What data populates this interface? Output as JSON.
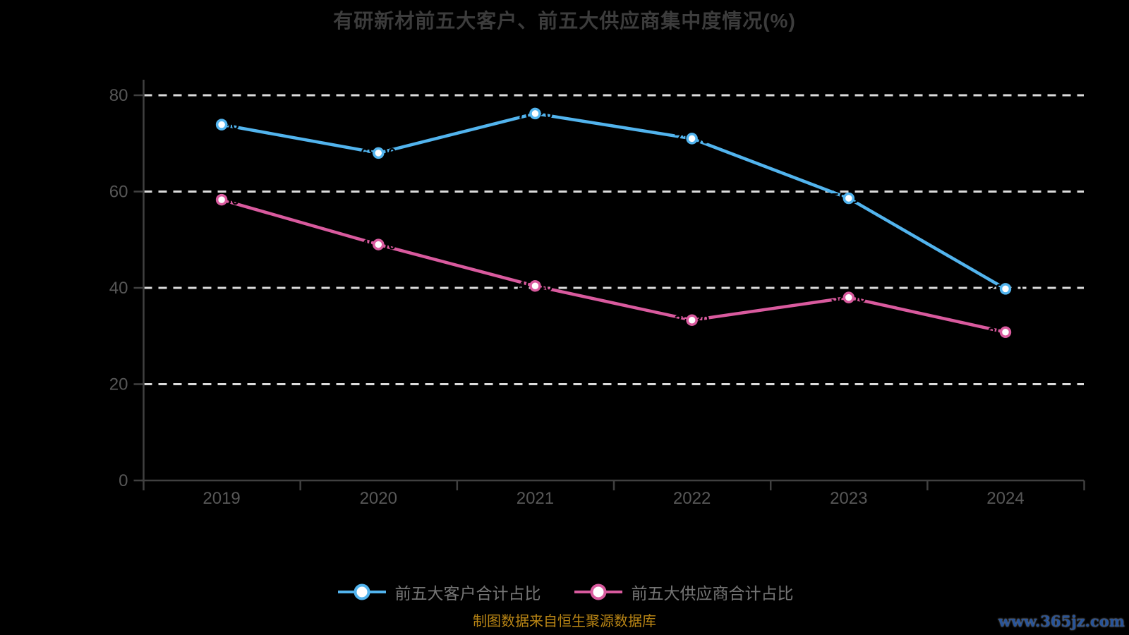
{
  "page": {
    "background_color": "#000000"
  },
  "chart_data": {
    "type": "line",
    "title": "有研新材前五大客户、前五大供应商集中度情况(%)",
    "categories": [
      "2019",
      "2020",
      "2021",
      "2022",
      "2023",
      "2024"
    ],
    "series": [
      {
        "name": "前五大客户合计占比",
        "color": "#52B4EE",
        "values": [
          73.9,
          68.0,
          76.2,
          71.0,
          58.6,
          39.8
        ]
      },
      {
        "name": "前五大供应商合计占比",
        "color": "#D95A9E",
        "values": [
          58.3,
          49.0,
          40.4,
          33.3,
          38.0,
          30.8
        ]
      }
    ],
    "xlabel": "",
    "ylabel": "",
    "ylim": [
      0,
      80
    ],
    "yticks": [
      0,
      20,
      40,
      60,
      80
    ],
    "grid": "horizontal-dashed",
    "legend_position": "bottom",
    "marker_style": "circle-white-fill",
    "colors": {
      "grid": "#DCDCDC",
      "axis": "#404040",
      "tick_label": "#575757",
      "title": "#3C3C3C",
      "legend_text": "#757575",
      "marker_fill": "#FFFFFF",
      "point_label": "#000000"
    }
  },
  "footer": {
    "source_text": "制图数据来自恒生聚源数据库",
    "source_color": "#BA8615",
    "watermark": "www.365jz.com",
    "watermark_color": "#27549B"
  }
}
